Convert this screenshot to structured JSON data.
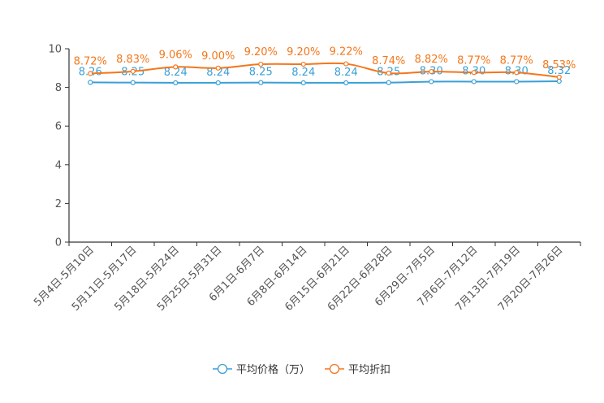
{
  "chart_data": {
    "type": "line",
    "title": "",
    "xlabel": "",
    "ylabel": "",
    "ylim": [
      0,
      10
    ],
    "yticks": [
      0,
      2,
      4,
      6,
      8,
      10
    ],
    "categories": [
      "5月4日-5月10日",
      "5月11日-5月17日",
      "5月18日-5月24日",
      "5月25日-5月31日",
      "6月1日-6月7日",
      "6月8日-6月14日",
      "6月15日-6月21日",
      "6月22日-6月28日",
      "6月29日-7月5日",
      "7月6日-7月12日",
      "7月13日-7月19日",
      "7月20日-7月26日"
    ],
    "series": [
      {
        "name": "平均价格（万）",
        "color": "#3a9fd6",
        "values": [
          8.26,
          8.25,
          8.24,
          8.24,
          8.25,
          8.24,
          8.24,
          8.25,
          8.3,
          8.3,
          8.3,
          8.32
        ],
        "labels": [
          "8.26",
          "8.25",
          "8.24",
          "8.24",
          "8.25",
          "8.24",
          "8.24",
          "8.25",
          "8.30",
          "8.30",
          "8.30",
          "8.32"
        ]
      },
      {
        "name": "平均折扣",
        "color": "#f5761a",
        "values": [
          8.72,
          8.83,
          9.06,
          9.0,
          9.2,
          9.2,
          9.22,
          8.74,
          8.82,
          8.77,
          8.77,
          8.53
        ],
        "labels": [
          "8.72%",
          "8.83%",
          "9.06%",
          "9.00%",
          "9.20%",
          "9.20%",
          "9.22%",
          "8.74%",
          "8.82%",
          "8.77%",
          "8.77%",
          "8.53%"
        ]
      }
    ],
    "legend": {
      "position": "bottom-center"
    },
    "grid": false
  }
}
